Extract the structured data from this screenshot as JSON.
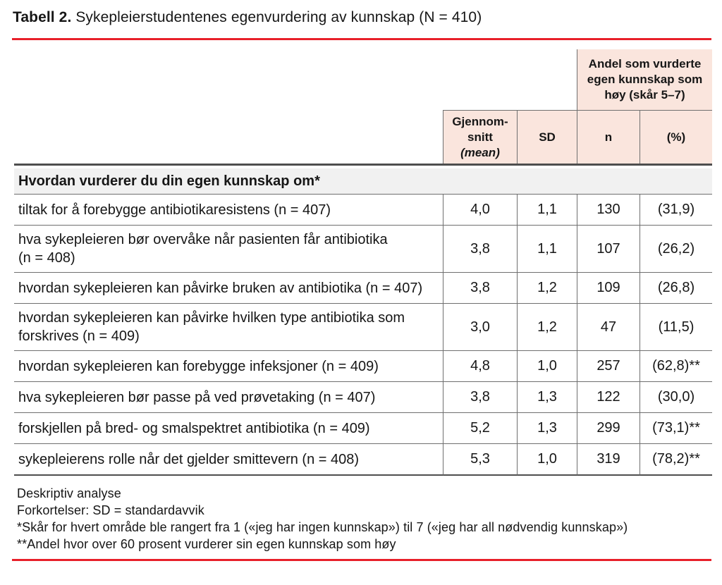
{
  "page": {
    "title_prefix": "Tabell 2.",
    "title_text": "Sykepleierstudentenes egenvurdering av kunnskap (N = 410)"
  },
  "table": {
    "group_header": "Andel som vurderte egen kunnskap som høy (skår 5–7)",
    "col_mean_l1": "Gjennom-",
    "col_mean_l2": "snitt",
    "col_mean_l3": "(mean)",
    "col_sd": "SD",
    "col_n": "n",
    "col_pct": "(%)",
    "section_header": "Hvordan vurderer du din egen kunnskap om*",
    "rows": [
      {
        "label": "tiltak for å forebygge antibiotikaresistens (n = 407)",
        "mean": "4,0",
        "sd": "1,1",
        "n": "130",
        "pct": "(31,9)"
      },
      {
        "label": "hva sykepleieren bør overvåke når pasienten får antibiotika (n = 408)",
        "mean": "3,8",
        "sd": "1,1",
        "n": "107",
        "pct": "(26,2)"
      },
      {
        "label": "hvordan sykepleieren kan påvirke bruken av antibiotika (n = 407)",
        "mean": "3,8",
        "sd": "1,2",
        "n": "109",
        "pct": "(26,8)"
      },
      {
        "label": "hvordan sykepleieren kan påvirke hvilken type antibiotika som forskrives (n = 409)",
        "mean": "3,0",
        "sd": "1,2",
        "n": "47",
        "pct": "(11,5)"
      },
      {
        "label": "hvordan sykepleieren kan forebygge infeksjoner (n = 409)",
        "mean": "4,8",
        "sd": "1,0",
        "n": "257",
        "pct": "(62,8)**"
      },
      {
        "label": "hva sykepleieren bør passe på ved prøvetaking (n = 407)",
        "mean": "3,8",
        "sd": "1,3",
        "n": "122",
        "pct": "(30,0)"
      },
      {
        "label": "forskjellen på bred- og smalspektret antibiotika (n = 409)",
        "mean": "5,2",
        "sd": "1,3",
        "n": "299",
        "pct": "(73,1)**"
      },
      {
        "label": "sykepleierens rolle når det gjelder smittevern (n = 408)",
        "mean": "5,3",
        "sd": "1,0",
        "n": "319",
        "pct": "(78,2)**"
      }
    ]
  },
  "footnotes": [
    "Deskriptiv analyse",
    "Forkortelser: SD = standardavvik",
    "*Skår for hvert område ble rangert fra 1 («jeg har ingen kunnskap») til 7 («jeg har all nødvendig kunnskap»)",
    "**Andel hvor over 60 prosent vurderer sin egen kunnskap som høy"
  ],
  "colors": {
    "accent_red": "#e8202a",
    "header_pink": "#fae5dd",
    "section_gray": "#f1f1f1",
    "border_gray": "#6f6f6f",
    "text": "#161616"
  }
}
